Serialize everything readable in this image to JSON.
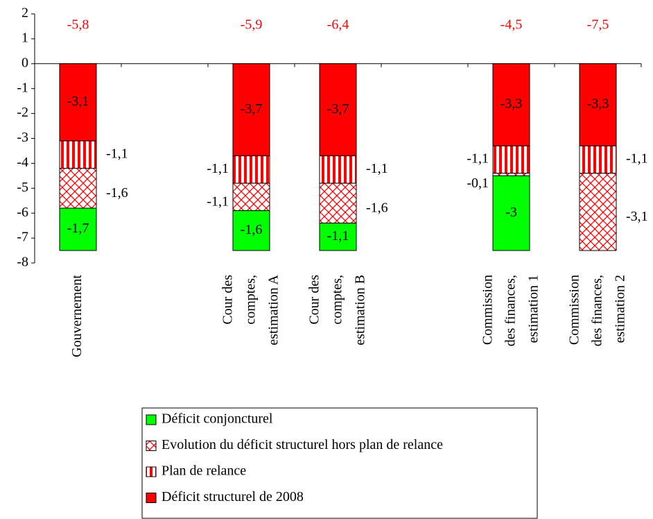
{
  "chart_data": {
    "type": "stacked_bar",
    "categories": [
      "Gouvernement",
      null,
      "Cour des\ncomptes,\nestimation A",
      "Cour des\ncomptes,\nestimation B",
      null,
      "Commission\ndes finances,\nestimation 1",
      "Commission\ndes finances,\nestimation 2"
    ],
    "series": [
      {
        "name": "Déficit conjoncturel",
        "color": "#00ff00",
        "pattern": "solid",
        "values": [
          -1.7,
          null,
          -1.6,
          -1.1,
          null,
          -3,
          null
        ],
        "value_labels": [
          "-1,7",
          null,
          "-1,6",
          "-1,1",
          null,
          "-3",
          null
        ]
      },
      {
        "name": "Evolution du déficit structurel hors plan de relance",
        "color": "#ff0000",
        "pattern": "crosshatch",
        "values": [
          -1.6,
          null,
          -1.1,
          -1.6,
          null,
          -0.1,
          -3.1
        ],
        "value_labels": [
          "-1,6",
          null,
          "-1,1",
          "-1,6",
          null,
          "-0,1",
          "-3,1"
        ]
      },
      {
        "name": "Plan de relance",
        "color": "#ff0000",
        "pattern": "stripes",
        "values": [
          -1.1,
          null,
          -1.1,
          -1.1,
          null,
          -1.1,
          -1.1
        ],
        "value_labels": [
          "-1,1",
          null,
          "-1,1",
          "-1,1",
          null,
          "-1,1",
          "-1,1"
        ]
      },
      {
        "name": "Déficit structurel de 2008",
        "color": "#ff0000",
        "pattern": "solid",
        "values": [
          -3.1,
          null,
          -3.7,
          -3.7,
          null,
          -3.3,
          -3.3
        ],
        "value_labels": [
          "-3,1",
          null,
          "-3,7",
          "-3,7",
          null,
          "-3,3",
          "-3,3"
        ]
      }
    ],
    "totals": {
      "color": "#ff0000",
      "values": [
        -5.8,
        null,
        -5.9,
        -6.4,
        null,
        -4.5,
        -7.5
      ],
      "value_labels": [
        "-5,8",
        null,
        "-5,9",
        "-6,4",
        null,
        "-4,5",
        "-7,5"
      ]
    },
    "ylim": [
      -8,
      2
    ],
    "yticks": [
      2,
      1,
      0,
      -1,
      -2,
      -3,
      -4,
      -5,
      -6,
      -7,
      -8
    ],
    "legend": "bottom"
  }
}
